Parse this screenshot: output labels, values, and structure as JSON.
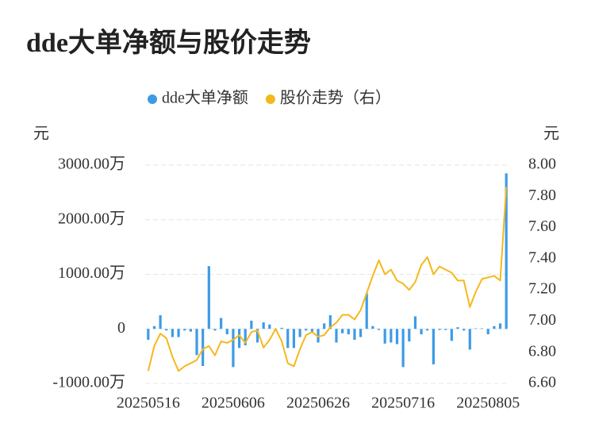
{
  "chart_data": {
    "type": "bar-line",
    "title": "dde大单净额与股价走势",
    "y_axis_label": "元",
    "y2_axis_label": "元",
    "categories": [
      "20250516",
      null,
      null,
      null,
      null,
      null,
      null,
      null,
      null,
      null,
      null,
      null,
      null,
      null,
      "20250606",
      null,
      null,
      null,
      null,
      null,
      null,
      null,
      null,
      null,
      null,
      null,
      null,
      null,
      "20250626",
      null,
      null,
      null,
      null,
      null,
      null,
      null,
      null,
      null,
      null,
      null,
      null,
      null,
      "20250716",
      null,
      null,
      null,
      null,
      null,
      null,
      null,
      null,
      null,
      null,
      null,
      null,
      null,
      "20250805",
      null,
      null,
      null
    ],
    "series": [
      {
        "name": "dde大单净额",
        "type": "bar",
        "color": "#3d9be6",
        "values": [
          -200,
          50,
          250,
          -30,
          -150,
          -150,
          -30,
          -50,
          -480,
          -680,
          1150,
          -30,
          200,
          -100,
          -700,
          -350,
          -300,
          150,
          -250,
          120,
          80,
          -30,
          20,
          -350,
          -350,
          -150,
          -30,
          -50,
          -250,
          100,
          250,
          -250,
          -80,
          -100,
          -200,
          -150,
          650,
          50,
          -20,
          -270,
          -250,
          -280,
          -700,
          -230,
          230,
          -100,
          -30,
          -650,
          -20,
          -20,
          -220,
          30,
          -30,
          -380,
          10,
          10,
          -100,
          50,
          100,
          2850
        ]
      },
      {
        "name": "股价走势（右）",
        "type": "line",
        "axis": "y2",
        "color": "#f5b81c",
        "values": [
          6.68,
          6.84,
          6.92,
          6.89,
          6.77,
          6.68,
          6.71,
          6.73,
          6.75,
          6.82,
          6.84,
          6.78,
          6.87,
          6.86,
          6.88,
          6.91,
          6.86,
          6.93,
          6.94,
          6.83,
          6.88,
          6.95,
          6.87,
          6.73,
          6.71,
          6.82,
          6.91,
          6.93,
          6.9,
          6.91,
          6.96,
          6.99,
          7.04,
          7.04,
          7.01,
          7.07,
          7.18,
          7.29,
          7.39,
          7.3,
          7.33,
          7.26,
          7.24,
          7.2,
          7.25,
          7.36,
          7.41,
          7.3,
          7.35,
          7.33,
          7.31,
          7.26,
          7.26,
          7.09,
          7.19,
          7.27,
          7.28,
          7.29,
          7.26,
          7.86
        ]
      }
    ],
    "ylim": [
      -1000,
      3000
    ],
    "yticks": [
      {
        "value": -1000,
        "label": "-1000.00万"
      },
      0,
      {
        "value": 1000,
        "label": "1000.00万"
      },
      {
        "value": 2000,
        "label": "2000.00万"
      },
      {
        "value": 3000,
        "label": "3000.00万"
      }
    ],
    "y2lim": [
      6.6,
      8.0
    ],
    "y2ticks": [
      {
        "value": 6.6,
        "label": "6.60"
      },
      {
        "value": 6.8,
        "label": "6.80"
      },
      {
        "value": 7.0,
        "label": "7.00"
      },
      {
        "value": 7.2,
        "label": "7.20"
      },
      {
        "value": 7.4,
        "label": "7.40"
      },
      {
        "value": 7.6,
        "label": "7.60"
      },
      {
        "value": 7.8,
        "label": "7.80"
      },
      {
        "value": 8.0,
        "label": "8.00"
      }
    ],
    "grid": true,
    "legend": "top"
  }
}
